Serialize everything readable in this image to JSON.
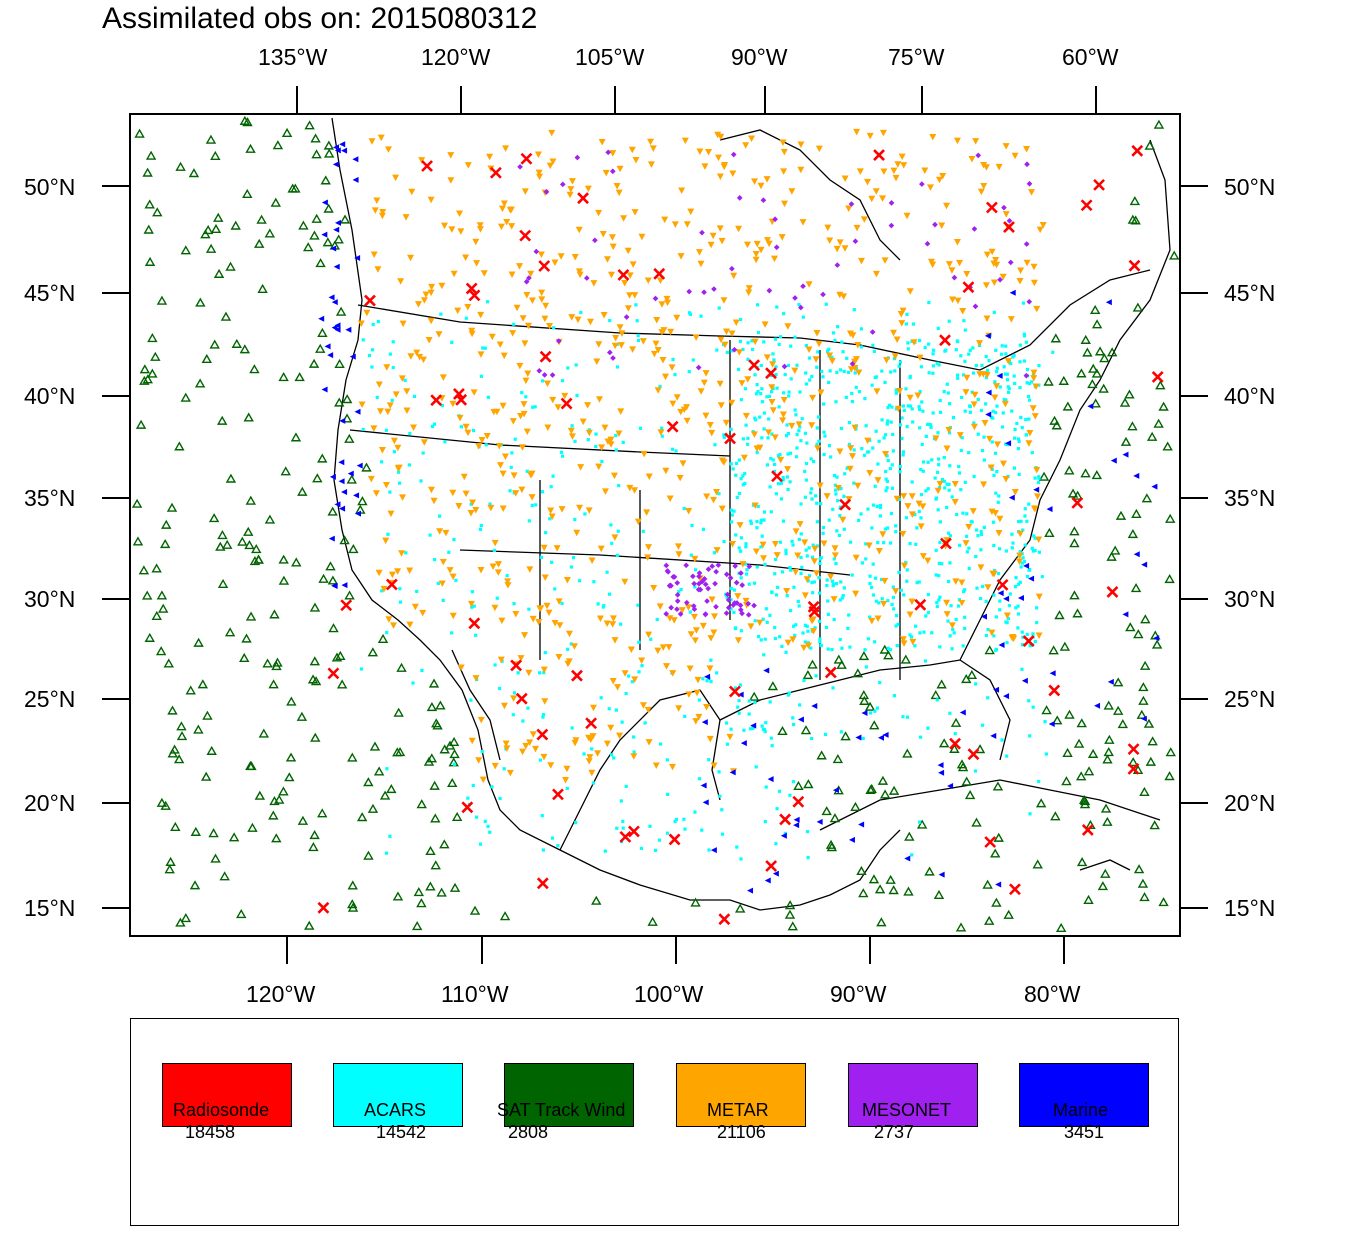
{
  "title": "Assimilated obs on: 2015080312",
  "top_axis_labels": [
    "135°W",
    "120°W",
    "105°W",
    "90°W",
    "75°W",
    "60°W"
  ],
  "bottom_axis_labels": [
    "120°W",
    "110°W",
    "100°W",
    "90°W",
    "80°W"
  ],
  "left_axis_labels": [
    "50°N",
    "45°N",
    "40°N",
    "35°N",
    "30°N",
    "25°N",
    "20°N",
    "15°N"
  ],
  "right_axis_labels": [
    "50°N",
    "45°N",
    "40°N",
    "35°N",
    "30°N",
    "25°N",
    "20°N",
    "15°N"
  ],
  "legend": [
    {
      "name": "Radiosonde",
      "count": "18458",
      "color": "#ff0000"
    },
    {
      "name": "ACARS",
      "count": "14542",
      "color": "#00ffff"
    },
    {
      "name": "SAT Track Wind",
      "count": "2808",
      "color": "#006400"
    },
    {
      "name": "METAR",
      "count": "21106",
      "color": "#ffa500"
    },
    {
      "name": "MESONET",
      "count": "2737",
      "color": "#a020f0"
    },
    {
      "name": "Marine",
      "count": "3451",
      "color": "#0000ff"
    }
  ]
}
